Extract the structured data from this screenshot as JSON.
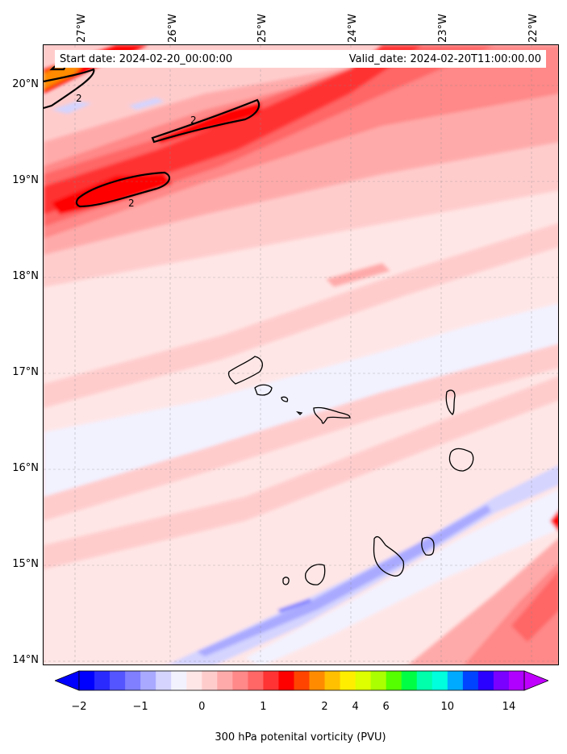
{
  "info": {
    "start_date": "Start date: 2024-02-20_00:00:00",
    "valid_date": "Valid_date: 2024-02-20T11:00:00.00"
  },
  "longitude_labels": [
    "27°W",
    "26°W",
    "25°W",
    "24°W",
    "23°W",
    "22°W"
  ],
  "latitude_labels": [
    "20°N",
    "19°N",
    "18°N",
    "17°N",
    "16°N",
    "15°N",
    "14°N"
  ],
  "contour_labels": [
    "2",
    "2",
    "2"
  ],
  "colorbar": {
    "label": "300 hPa potenital vorticity (PVU)",
    "tick_labels": [
      "−2",
      "−1",
      "0",
      "1",
      "2",
      "4",
      "6",
      "10",
      "14"
    ],
    "colors": [
      "#0000ff",
      "#2a2aff",
      "#5555ff",
      "#7f7fff",
      "#a9a9ff",
      "#d4d4ff",
      "#f2f2ff",
      "#ffe6e6",
      "#ffcccc",
      "#ffaaaa",
      "#ff8888",
      "#ff6666",
      "#ff3333",
      "#ff0000",
      "#ff4400",
      "#ff8c00",
      "#ffc000",
      "#ffee00",
      "#ddff00",
      "#aaff00",
      "#55ff00",
      "#00ff44",
      "#00ffaa",
      "#00ffdd",
      "#00aaff",
      "#0044ff",
      "#2a00ff",
      "#7a00ff",
      "#b000ff"
    ],
    "extend_low_color": "#0000ff",
    "extend_high_color": "#c000ff"
  }
}
